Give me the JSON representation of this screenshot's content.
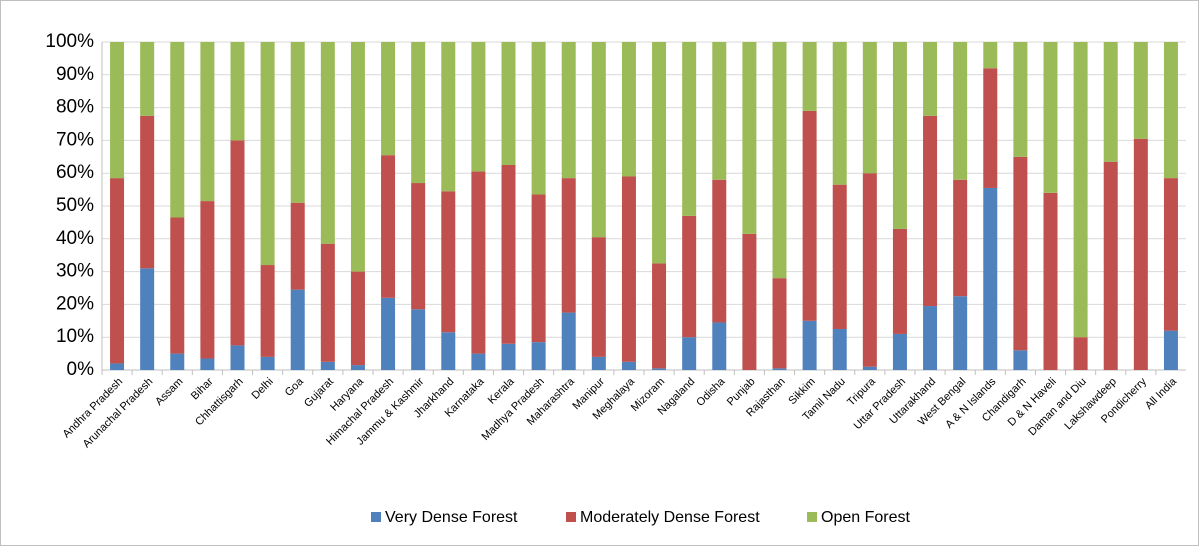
{
  "chart_data": {
    "type": "stacked_bar",
    "categories": [
      "Andhra Pradesh",
      "Arunachal Pradesh",
      "Assam",
      "Bihar",
      "Chhattisgarh",
      "Delhi",
      "Goa",
      "Gujarat",
      "Haryana",
      "Himachal Pradesh",
      "Jammu & Kashmir",
      "Jharkhand",
      "Karnataka",
      "Kerala",
      "Madhya Pradesh",
      "Maharashtra",
      "Manipur",
      "Meghalaya",
      "Mizoram",
      "Nagaland",
      "Odisha",
      "Punjab",
      "Rajasthan",
      "Sikkim",
      "Tamil Nadu",
      "Tripura",
      "Uttar Pradesh",
      "Uttarakhand",
      "West Bengal",
      "A & N Islands",
      "Chandigarh",
      "D & N Haveli",
      "Daman and Diu",
      "Lakshawdeep",
      "Pondicherry",
      "All India"
    ],
    "series": [
      {
        "name": "Very Dense Forest",
        "color": "#4f81bd",
        "values": [
          2,
          31,
          5,
          3.5,
          7.5,
          4,
          24.5,
          2.5,
          1.5,
          22,
          18.5,
          11.5,
          5,
          8,
          8.5,
          17.5,
          4,
          2.5,
          0.5,
          10,
          14.5,
          0,
          0.5,
          15,
          12.5,
          1,
          11,
          19.5,
          22.5,
          55.5,
          6,
          0,
          0,
          0,
          0,
          12
        ]
      },
      {
        "name": "Moderately Dense Forest",
        "color": "#c0504d",
        "values": [
          56.5,
          46.5,
          41.5,
          48,
          62.5,
          28,
          26.5,
          36,
          28.5,
          43.5,
          38.5,
          43,
          55.5,
          54.5,
          45,
          41,
          36.5,
          56.5,
          32,
          37,
          43.5,
          41.5,
          27.5,
          64,
          44,
          59,
          32,
          58,
          35.5,
          36.5,
          59,
          54,
          10,
          63.5,
          70.5,
          46.5
        ]
      },
      {
        "name": "Open Forest",
        "color": "#9bbb59",
        "values": [
          41.5,
          22.5,
          53.5,
          48.5,
          30,
          68,
          49,
          61.5,
          70,
          34.5,
          43,
          45.5,
          39.5,
          37.5,
          46.5,
          41.5,
          59.5,
          41,
          67.5,
          53,
          42,
          58.5,
          72,
          21,
          43.5,
          40,
          57,
          22.5,
          42,
          8,
          35,
          46,
          90,
          36.5,
          29.5,
          41.5
        ]
      }
    ],
    "ylim": [
      0,
      100
    ],
    "yticks": [
      {
        "value": 0,
        "label": "0%"
      },
      {
        "value": 10,
        "label": "10%"
      },
      {
        "value": 20,
        "label": "20%"
      },
      {
        "value": 30,
        "label": "30%"
      },
      {
        "value": 40,
        "label": "40%"
      },
      {
        "value": 50,
        "label": "50%"
      },
      {
        "value": 60,
        "label": "60%"
      },
      {
        "value": 70,
        "label": "70%"
      },
      {
        "value": 80,
        "label": "80%"
      },
      {
        "value": 90,
        "label": "90%"
      },
      {
        "value": 100,
        "label": "100%"
      }
    ],
    "grid": true
  }
}
